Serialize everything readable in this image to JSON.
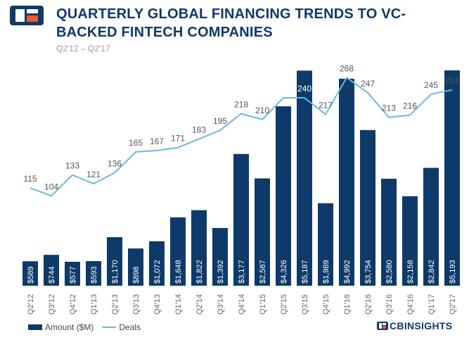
{
  "header": {
    "title": "QUARTERLY GLOBAL FINANCING TRENDS TO VC-BACKED FINTECH COMPANIES",
    "subtitle": "Q2'12 – Q2'17"
  },
  "brand": {
    "logo_text": "CB",
    "name": "CBINSIGHTS",
    "primary_color": "#0d3a69",
    "accent_color": "#f05a28"
  },
  "legend": {
    "bar_label": "Amount ($M)",
    "line_label": "Deals"
  },
  "chart_data": {
    "type": "bar",
    "categories": [
      "Q2'12",
      "Q3'12",
      "Q4'12",
      "Q1'13",
      "Q2'13",
      "Q3'13",
      "Q4'13",
      "Q1'14",
      "Q2'14",
      "Q3'14",
      "Q4'14",
      "Q1'15",
      "Q2'15",
      "Q3'15",
      "Q4'15",
      "Q1'16",
      "Q2'16",
      "Q3'16",
      "Q4'16",
      "Q1'17",
      "Q2'17"
    ],
    "series": [
      {
        "name": "Amount ($M)",
        "type": "bar",
        "color": "#0d3a69",
        "values": [
          589,
          744,
          577,
          593,
          1170,
          898,
          1072,
          1648,
          1822,
          1392,
          3177,
          2587,
          4326,
          5187,
          1989,
          4992,
          3754,
          2580,
          2158,
          2842,
          5193
        ],
        "labels": [
          "$589",
          "$744",
          "$577",
          "$593",
          "$1,170",
          "$898",
          "$1,072",
          "$1,648",
          "$1,822",
          "$1,392",
          "$3,177",
          "$2,587",
          "$4,326",
          "$5,187",
          "$1,989",
          "$4,992",
          "$3,754",
          "$2,580",
          "$2,158",
          "$2,842",
          "$5,193"
        ]
      },
      {
        "name": "Deals",
        "type": "line",
        "color": "#6bbad6",
        "values": [
          115,
          104,
          133,
          121,
          136,
          165,
          167,
          171,
          183,
          195,
          218,
          210,
          240,
          240,
          217,
          268,
          247,
          213,
          216,
          245,
          251
        ],
        "labels": [
          "115",
          "104",
          "133",
          "121",
          "136",
          "165",
          "167",
          "171",
          "183",
          "195",
          "218",
          "210",
          "",
          "240",
          "217",
          "268",
          "247",
          "213",
          "216",
          "245",
          "251"
        ]
      }
    ],
    "xlabel": "",
    "ylabel": "",
    "grid": false,
    "legend_position": "bottom-left"
  }
}
